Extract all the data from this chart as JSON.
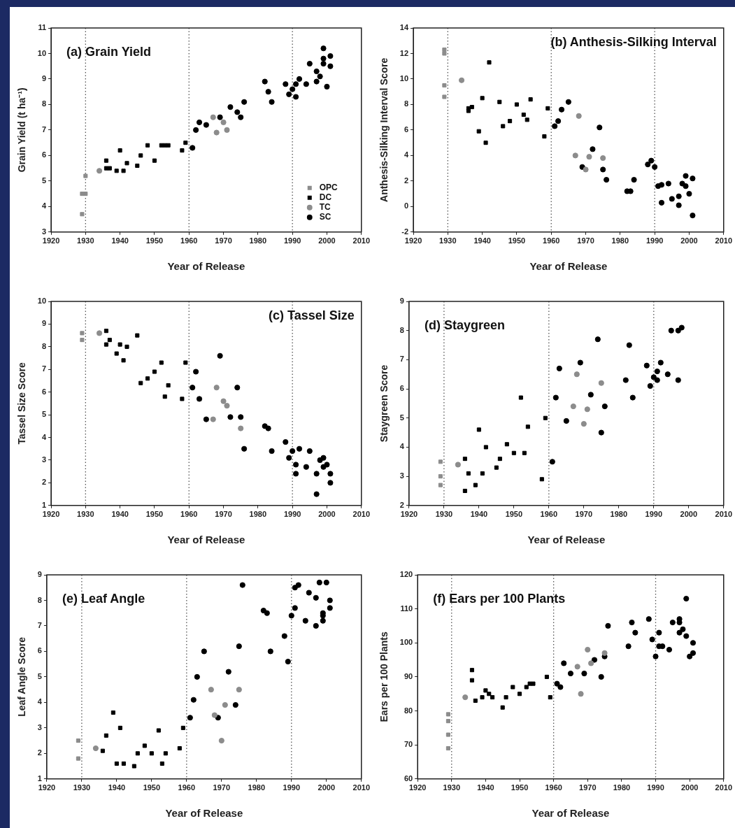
{
  "chart_data": [
    {
      "type": "scatter",
      "title": "(a) Grain Yield",
      "xlabel": "Year of Release",
      "ylabel": "Grain Yield (t ha⁻¹)",
      "xlim": [
        1920,
        2010
      ],
      "xticks": [
        1920,
        1930,
        1940,
        1950,
        1960,
        1970,
        1980,
        1990,
        2000,
        2010
      ],
      "ylim": [
        3,
        11
      ],
      "yticks": [
        3,
        4,
        5,
        6,
        7,
        8,
        9,
        10,
        11
      ],
      "grid": false,
      "legend": "bottom right",
      "ref_lines": [
        {
          "axis": "x",
          "value": 1930,
          "line_style": "dotted"
        },
        {
          "axis": "x",
          "value": 1960,
          "line_style": "dotted"
        },
        {
          "axis": "x",
          "value": 1990,
          "line_style": "dotted"
        }
      ],
      "series": [
        {
          "name": "OPC",
          "color": "#8c8c8c",
          "marker": "square",
          "x": [
            1929,
            1929,
            1930,
            1930
          ],
          "values": [
            3.7,
            4.5,
            4.5,
            5.2
          ]
        },
        {
          "name": "DC",
          "color": "#000000",
          "marker": "square",
          "x": [
            1936,
            1936,
            1937,
            1939,
            1940,
            1941,
            1942,
            1945,
            1946,
            1948,
            1950,
            1952,
            1953,
            1954,
            1958,
            1959
          ],
          "values": [
            5.8,
            5.5,
            5.5,
            5.4,
            6.2,
            5.4,
            5.7,
            5.6,
            6.0,
            6.4,
            5.8,
            6.4,
            6.4,
            6.4,
            6.2,
            6.5
          ]
        },
        {
          "name": "TC",
          "color": "#8c8c8c",
          "marker": "circle",
          "x": [
            1934,
            1967,
            1968,
            1970,
            1971
          ],
          "values": [
            5.4,
            7.5,
            6.9,
            7.3,
            7.0
          ]
        },
        {
          "name": "SC",
          "color": "#000000",
          "marker": "circle",
          "x": [
            1961,
            1962,
            1963,
            1965,
            1969,
            1972,
            1974,
            1975,
            1976,
            1982,
            1983,
            1984,
            1988,
            1989,
            1990,
            1991,
            1991,
            1992,
            1994,
            1995,
            1997,
            1997,
            1998,
            1999,
            1999,
            1999,
            2000,
            2001,
            2001
          ],
          "values": [
            6.3,
            7.0,
            7.3,
            7.2,
            7.5,
            7.9,
            7.7,
            7.5,
            8.1,
            8.9,
            8.5,
            8.1,
            8.8,
            8.4,
            8.6,
            8.3,
            8.8,
            9.0,
            8.8,
            9.6,
            9.3,
            8.9,
            9.1,
            10.2,
            9.8,
            9.6,
            8.7,
            9.9,
            9.5
          ]
        }
      ]
    },
    {
      "type": "scatter",
      "title": "(b) Anthesis-Silking Interval",
      "xlabel": "Year of Release",
      "ylabel": "Anthesis-Silking Interval Score",
      "xlim": [
        1920,
        2010
      ],
      "xticks": [
        1920,
        1930,
        1940,
        1950,
        1960,
        1970,
        1980,
        1990,
        2000,
        2010
      ],
      "ylim": [
        -2,
        14
      ],
      "yticks": [
        -2,
        0,
        2,
        4,
        6,
        8,
        10,
        12,
        14
      ],
      "grid": false,
      "ref_lines": [
        {
          "axis": "x",
          "value": 1930,
          "line_style": "dotted"
        },
        {
          "axis": "x",
          "value": 1960,
          "line_style": "dotted"
        },
        {
          "axis": "x",
          "value": 1990,
          "line_style": "dotted"
        }
      ],
      "series": [
        {
          "color": "#8c8c8c",
          "marker": "square",
          "x": [
            1929,
            1929,
            1929,
            1929
          ],
          "values": [
            12.3,
            12.0,
            9.5,
            8.6
          ]
        },
        {
          "color": "#000000",
          "marker": "square",
          "x": [
            1936,
            1936,
            1937,
            1939,
            1940,
            1941,
            1942,
            1945,
            1946,
            1948,
            1950,
            1952,
            1953,
            1954,
            1958,
            1959
          ],
          "values": [
            7.5,
            7.7,
            7.8,
            5.9,
            8.5,
            5.0,
            11.3,
            8.2,
            6.3,
            6.7,
            8.0,
            7.2,
            6.8,
            8.4,
            5.5,
            7.7
          ]
        },
        {
          "color": "#8c8c8c",
          "marker": "circle",
          "x": [
            1934,
            1968,
            1967,
            1970,
            1971,
            1975
          ],
          "values": [
            9.9,
            7.1,
            4.0,
            2.9,
            3.9,
            3.8
          ]
        },
        {
          "color": "#000000",
          "marker": "circle",
          "x": [
            1961,
            1962,
            1963,
            1965,
            1969,
            1972,
            1974,
            1975,
            1976,
            1982,
            1983,
            1984,
            1988,
            1989,
            1990,
            1991,
            1992,
            1992,
            1994,
            1995,
            1997,
            1997,
            1998,
            1999,
            1999,
            2000,
            2001,
            2001
          ],
          "values": [
            6.3,
            6.7,
            7.6,
            8.2,
            3.1,
            4.5,
            6.2,
            2.9,
            2.1,
            1.2,
            1.2,
            2.1,
            3.3,
            3.6,
            3.1,
            1.6,
            0.3,
            1.7,
            1.8,
            0.6,
            0.8,
            0.1,
            1.8,
            2.4,
            1.6,
            1.0,
            2.2,
            -0.7
          ]
        }
      ]
    },
    {
      "type": "scatter",
      "title": "(c) Tassel Size",
      "xlabel": "Year of Release",
      "ylabel": "Tassel Size Score",
      "xlim": [
        1920,
        2010
      ],
      "xticks": [
        1920,
        1930,
        1940,
        1950,
        1960,
        1970,
        1980,
        1990,
        2000,
        2010
      ],
      "ylim": [
        1,
        10
      ],
      "yticks": [
        1,
        2,
        3,
        4,
        5,
        6,
        7,
        8,
        9,
        10
      ],
      "grid": false,
      "ref_lines": [
        {
          "axis": "x",
          "value": 1930,
          "line_style": "dotted"
        },
        {
          "axis": "x",
          "value": 1960,
          "line_style": "dotted"
        },
        {
          "axis": "x",
          "value": 1990,
          "line_style": "dotted"
        }
      ],
      "series": [
        {
          "color": "#8c8c8c",
          "marker": "square",
          "x": [
            1929,
            1929
          ],
          "values": [
            8.6,
            8.3
          ]
        },
        {
          "color": "#000000",
          "marker": "square",
          "x": [
            1936,
            1936,
            1937,
            1939,
            1940,
            1941,
            1942,
            1945,
            1946,
            1948,
            1950,
            1952,
            1953,
            1954,
            1958,
            1959
          ],
          "values": [
            8.7,
            8.1,
            8.3,
            7.7,
            8.1,
            7.4,
            8.0,
            8.5,
            6.4,
            6.6,
            6.9,
            7.3,
            5.8,
            6.3,
            5.7,
            7.3
          ]
        },
        {
          "color": "#8c8c8c",
          "marker": "circle",
          "x": [
            1934,
            1968,
            1967,
            1970,
            1971,
            1975
          ],
          "values": [
            8.6,
            6.2,
            4.8,
            5.6,
            5.4,
            4.4
          ]
        },
        {
          "color": "#000000",
          "marker": "circle",
          "x": [
            1961,
            1962,
            1963,
            1965,
            1969,
            1972,
            1974,
            1975,
            1976,
            1982,
            1983,
            1984,
            1988,
            1989,
            1990,
            1991,
            1991,
            1992,
            1994,
            1995,
            1997,
            1997,
            1998,
            1999,
            1999,
            2000,
            2001,
            2001
          ],
          "values": [
            6.2,
            6.9,
            5.7,
            4.8,
            7.6,
            4.9,
            6.2,
            4.9,
            3.5,
            4.5,
            4.4,
            3.4,
            3.8,
            3.1,
            3.4,
            2.8,
            2.4,
            3.5,
            2.7,
            3.4,
            2.4,
            1.5,
            3.0,
            3.1,
            2.7,
            2.8,
            2.4,
            2.0
          ]
        }
      ]
    },
    {
      "type": "scatter",
      "title": "(d) Staygreen",
      "xlabel": "Year of Release",
      "ylabel": "Staygreen Score",
      "xlim": [
        1920,
        2010
      ],
      "xticks": [
        1920,
        1930,
        1940,
        1950,
        1960,
        1970,
        1980,
        1990,
        2000,
        2010
      ],
      "ylim": [
        2,
        9
      ],
      "yticks": [
        2,
        3,
        4,
        5,
        6,
        7,
        8,
        9
      ],
      "grid": false,
      "ref_lines": [
        {
          "axis": "x",
          "value": 1930,
          "line_style": "dotted"
        },
        {
          "axis": "x",
          "value": 1960,
          "line_style": "dotted"
        },
        {
          "axis": "x",
          "value": 1990,
          "line_style": "dotted"
        }
      ],
      "series": [
        {
          "color": "#8c8c8c",
          "marker": "square",
          "x": [
            1929,
            1929,
            1929
          ],
          "values": [
            3.5,
            3.0,
            2.7
          ]
        },
        {
          "color": "#000000",
          "marker": "square",
          "x": [
            1936,
            1936,
            1937,
            1939,
            1940,
            1941,
            1942,
            1945,
            1946,
            1948,
            1950,
            1952,
            1953,
            1954,
            1958,
            1959
          ],
          "values": [
            3.6,
            2.5,
            3.1,
            2.7,
            4.6,
            3.1,
            4.0,
            3.3,
            3.6,
            4.1,
            3.8,
            5.7,
            3.8,
            4.7,
            2.9,
            5.0
          ]
        },
        {
          "color": "#8c8c8c",
          "marker": "circle",
          "x": [
            1934,
            1968,
            1967,
            1970,
            1971,
            1975
          ],
          "values": [
            3.4,
            6.5,
            5.4,
            4.8,
            5.3,
            6.2
          ]
        },
        {
          "color": "#000000",
          "marker": "circle",
          "x": [
            1961,
            1962,
            1963,
            1965,
            1969,
            1972,
            1974,
            1975,
            1976,
            1982,
            1983,
            1984,
            1988,
            1989,
            1990,
            1991,
            1991,
            1992,
            1994,
            1995,
            1997,
            1997,
            1998
          ],
          "values": [
            3.5,
            5.7,
            6.7,
            4.9,
            6.9,
            5.8,
            7.7,
            4.5,
            5.4,
            6.3,
            7.5,
            5.7,
            6.8,
            6.1,
            6.4,
            6.3,
            6.6,
            6.9,
            6.5,
            8.0,
            8.0,
            6.3,
            8.1
          ]
        }
      ]
    },
    {
      "type": "scatter",
      "title": "(e) Leaf Angle",
      "xlabel": "Year of Release",
      "ylabel": "Leaf Angle Score",
      "xlim": [
        1920,
        2010
      ],
      "xticks": [
        1920,
        1930,
        1940,
        1950,
        1960,
        1970,
        1980,
        1990,
        2000,
        2010
      ],
      "ylim": [
        1,
        9
      ],
      "yticks": [
        1,
        2,
        3,
        4,
        5,
        6,
        7,
        8,
        9
      ],
      "grid": false,
      "ref_lines": [
        {
          "axis": "x",
          "value": 1930,
          "line_style": "dotted"
        },
        {
          "axis": "x",
          "value": 1960,
          "line_style": "dotted"
        },
        {
          "axis": "x",
          "value": 1990,
          "line_style": "dotted"
        }
      ],
      "series": [
        {
          "color": "#8c8c8c",
          "marker": "square",
          "x": [
            1929,
            1929
          ],
          "values": [
            2.5,
            1.8
          ]
        },
        {
          "color": "#000000",
          "marker": "square",
          "x": [
            1936,
            1937,
            1939,
            1940,
            1941,
            1942,
            1945,
            1946,
            1948,
            1950,
            1952,
            1953,
            1954,
            1958,
            1959
          ],
          "values": [
            2.1,
            2.7,
            3.6,
            1.6,
            3.0,
            1.6,
            1.5,
            2.0,
            2.3,
            2.0,
            2.9,
            1.6,
            2.0,
            2.2,
            3.0
          ]
        },
        {
          "color": "#8c8c8c",
          "marker": "circle",
          "x": [
            1934,
            1967,
            1968,
            1970,
            1971,
            1975
          ],
          "values": [
            2.2,
            4.5,
            3.5,
            2.5,
            3.9,
            4.5
          ]
        },
        {
          "color": "#000000",
          "marker": "circle",
          "x": [
            1961,
            1962,
            1963,
            1965,
            1969,
            1972,
            1974,
            1975,
            1976,
            1982,
            1983,
            1984,
            1988,
            1989,
            1990,
            1991,
            1991,
            1992,
            1994,
            1995,
            1997,
            1997,
            1998,
            1999,
            1999,
            1999,
            2000,
            2001,
            2001
          ],
          "values": [
            3.4,
            4.1,
            5.0,
            6.0,
            3.4,
            5.2,
            3.9,
            6.2,
            8.6,
            7.6,
            7.5,
            6.0,
            6.6,
            5.6,
            7.4,
            8.5,
            7.7,
            8.6,
            7.2,
            8.3,
            8.1,
            7.0,
            8.7,
            7.5,
            7.4,
            7.2,
            8.7,
            8.0,
            7.7
          ]
        }
      ]
    },
    {
      "type": "scatter",
      "title": "(f) Ears per 100 Plants",
      "xlabel": "Year of Release",
      "ylabel": "Ears per 100 Plants",
      "xlim": [
        1920,
        2010
      ],
      "xticks": [
        1920,
        1930,
        1940,
        1950,
        1960,
        1970,
        1980,
        1990,
        2000,
        2010
      ],
      "ylim": [
        60,
        120
      ],
      "yticks": [
        60,
        70,
        80,
        90,
        100,
        110,
        120
      ],
      "grid": false,
      "ref_lines": [
        {
          "axis": "x",
          "value": 1930,
          "line_style": "dotted"
        },
        {
          "axis": "x",
          "value": 1960,
          "line_style": "dotted"
        },
        {
          "axis": "x",
          "value": 1990,
          "line_style": "dotted"
        }
      ],
      "series": [
        {
          "color": "#8c8c8c",
          "marker": "square",
          "x": [
            1929,
            1929,
            1929,
            1929
          ],
          "values": [
            69,
            73,
            77,
            79
          ]
        },
        {
          "color": "#000000",
          "marker": "square",
          "x": [
            1936,
            1936,
            1937,
            1939,
            1940,
            1941,
            1942,
            1945,
            1946,
            1948,
            1950,
            1952,
            1953,
            1954,
            1958,
            1959
          ],
          "values": [
            92,
            89,
            83,
            84,
            86,
            85,
            84,
            81,
            84,
            87,
            85,
            87,
            88,
            88,
            90,
            84
          ]
        },
        {
          "color": "#8c8c8c",
          "marker": "circle",
          "x": [
            1934,
            1967,
            1968,
            1970,
            1971,
            1975
          ],
          "values": [
            84,
            93,
            85,
            98,
            94,
            97
          ]
        },
        {
          "color": "#000000",
          "marker": "circle",
          "x": [
            1961,
            1962,
            1963,
            1965,
            1969,
            1972,
            1974,
            1975,
            1976,
            1982,
            1983,
            1984,
            1988,
            1989,
            1990,
            1991,
            1991,
            1992,
            1994,
            1995,
            1997,
            1997,
            1997,
            1998,
            1999,
            1999,
            2000,
            2001,
            2001
          ],
          "values": [
            88,
            87,
            94,
            91,
            91,
            95,
            90,
            96,
            105,
            99,
            106,
            103,
            107,
            101,
            96,
            103,
            99,
            99,
            98,
            106,
            107,
            106,
            103,
            104,
            113,
            102,
            96,
            100,
            97
          ]
        }
      ]
    }
  ]
}
